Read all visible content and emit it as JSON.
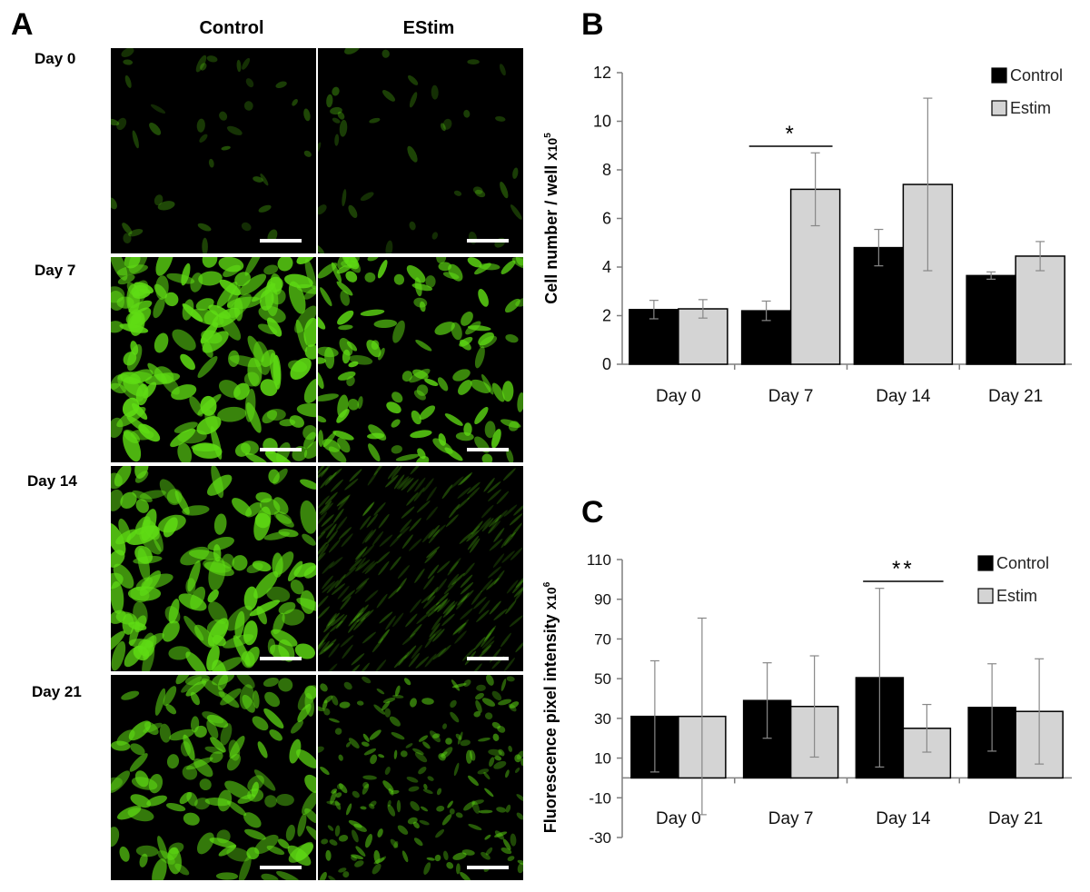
{
  "panelA": {
    "letter": "A",
    "col_headers": [
      "Control",
      "EStim"
    ],
    "row_headers": [
      "Day 0",
      "Day 7",
      "Day 14",
      "Day 21"
    ],
    "image_fill_color": "#5fdc14",
    "background_color": "#000000"
  },
  "chart_data": [
    {
      "panel_letter": "B",
      "type": "bar",
      "categories": [
        "Day 0",
        "Day 7",
        "Day 14",
        "Day 21"
      ],
      "series": [
        {
          "name": "Control",
          "color": "#000000",
          "values": [
            2.25,
            2.2,
            4.8,
            3.65
          ],
          "errors": [
            0.38,
            0.4,
            0.75,
            0.15
          ]
        },
        {
          "name": "Estim",
          "color": "#d4d4d4",
          "values": [
            2.28,
            7.2,
            7.4,
            4.45
          ],
          "errors": [
            0.38,
            1.5,
            3.55,
            0.6
          ]
        }
      ],
      "ylabel": "Cell number / well",
      "ylabel_unit": "X10",
      "ylabel_unit_exp": "5",
      "ylim": [
        0,
        12
      ],
      "yticks": [
        0,
        2,
        4,
        6,
        8,
        10,
        12
      ],
      "legend_position": "top-right",
      "annotations": [
        {
          "text": "*",
          "category": "Day 7"
        }
      ]
    },
    {
      "panel_letter": "C",
      "type": "bar",
      "categories": [
        "Day 0",
        "Day 7",
        "Day 14",
        "Day 21"
      ],
      "series": [
        {
          "name": "Control",
          "color": "#000000",
          "values": [
            31,
            39,
            50.5,
            35.5
          ],
          "errors": [
            28,
            19,
            45,
            22
          ]
        },
        {
          "name": "Estim",
          "color": "#d4d4d4",
          "values": [
            31,
            36,
            25,
            33.5
          ],
          "errors": [
            49.5,
            25.5,
            12,
            26.5
          ]
        }
      ],
      "ylabel": "Fluorescence pixel intensity",
      "ylabel_unit": "X10",
      "ylabel_unit_exp": "6",
      "ylim": [
        -30,
        110
      ],
      "yticks": [
        -30,
        -10,
        10,
        30,
        50,
        70,
        90,
        110
      ],
      "legend_position": "top-right",
      "annotations": [
        {
          "text": "**",
          "category": "Day 14"
        }
      ]
    }
  ]
}
